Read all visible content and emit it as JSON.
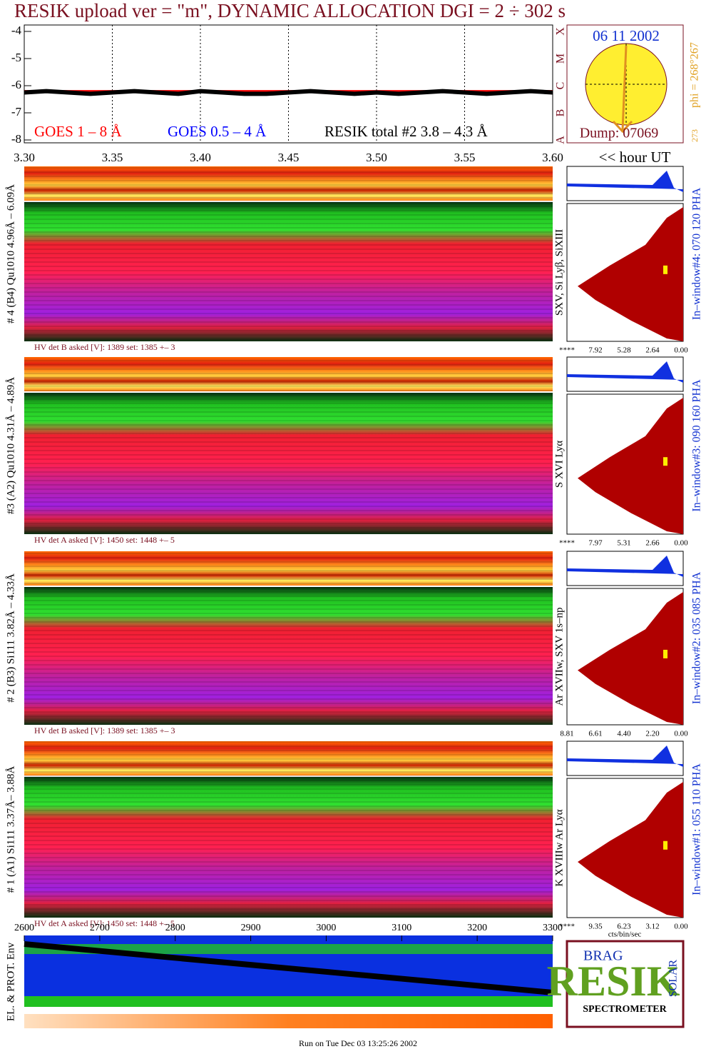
{
  "chart_data": [
    {
      "type": "line",
      "title": "RESIK upload ver = \"m\", DYNAMIC ALLOCATION  DGI =   2 ÷ 302 s",
      "x_label": "<< hour UT",
      "x": [
        3.3,
        3.3125,
        3.325,
        3.3375,
        3.35,
        3.3625,
        3.375,
        3.3875,
        3.4,
        3.4125,
        3.425,
        3.4375,
        3.45,
        3.4625,
        3.475,
        3.4875,
        3.5,
        3.5125,
        3.525,
        3.5375,
        3.55,
        3.5625,
        3.575,
        3.5875,
        3.6
      ],
      "series": [
        {
          "name": "GOES 1 – 8 Å",
          "color": "#ff0000",
          "values": [
            -6.2,
            -6.2,
            -6.2,
            -6.2,
            -6.2,
            -6.2,
            -6.2,
            -6.2,
            -6.2,
            -6.2,
            -6.2,
            -6.2,
            -6.2,
            -6.2,
            -6.2,
            -6.2,
            -6.2,
            -6.2,
            -6.2,
            -6.2,
            -6.2,
            -6.2,
            -6.2,
            -6.2,
            -6.2
          ]
        },
        {
          "name": "GOES 0.5 – 4 Å",
          "color": "#0000ff",
          "values": [
            null,
            null,
            null,
            null,
            null,
            null,
            null,
            null,
            null,
            null,
            null,
            null,
            null,
            null,
            null,
            null,
            null,
            null,
            null,
            null,
            null,
            null,
            null,
            null,
            null
          ]
        },
        {
          "name": "RESIK total #2  3.8 – 4.3 Å",
          "color": "#000000",
          "values": [
            -6.25,
            -6.2,
            -6.25,
            -6.3,
            -6.25,
            -6.2,
            -6.25,
            -6.3,
            -6.2,
            -6.25,
            -6.3,
            -6.3,
            -6.25,
            -6.2,
            -6.25,
            -6.3,
            -6.25,
            -6.3,
            -6.25,
            -6.2,
            -6.25,
            -6.3,
            -6.25,
            -6.2,
            -6.25
          ]
        }
      ],
      "xlim": [
        3.3,
        3.6
      ],
      "xticks": [
        {
          "value": 3.3,
          "label": "3.30"
        },
        3.35,
        {
          "value": 3.4,
          "label": "3.40"
        },
        3.45,
        {
          "value": 3.5,
          "label": "3.50"
        },
        3.55,
        {
          "value": 3.6,
          "label": "3.60"
        }
      ],
      "ylim": [
        -8,
        -4
      ],
      "yticks": [
        -8,
        -7,
        -6,
        -5,
        -4
      ],
      "grid": true
    }
  ],
  "sun": {
    "date": "06 11 2002",
    "dump": "Dump: 07069",
    "phi": "phi = 268°267",
    "phi_min": "273",
    "classes": [
      "X",
      "M",
      "C",
      "B",
      "A"
    ]
  },
  "panels": [
    {
      "label": "# 4 (B4) Qu1010 4.96Å – 6.09Å",
      "hv": "HV det B asked [V]:  1389 set:  1385 +–   3",
      "lines": "SXV, Si Lyβ, SiXIII",
      "window": "In–window#4:  070 120 PHA",
      "hist_ticks": [
        "****",
        "7.92",
        "5.28",
        "2.64",
        "0.00"
      ]
    },
    {
      "label": "#3 (A2) Qu1010  4.31Å – 4.89Å",
      "hv": "HV det A asked [V]:  1450 set:  1448 +–   5",
      "lines": "S XVI Lyα",
      "window": "In–window#3:  090 160 PHA",
      "hist_ticks": [
        "****",
        "7.97",
        "5.31",
        "2.66",
        "0.00"
      ]
    },
    {
      "label": "# 2 (B3) Si111  3.82Å – 4.33Å",
      "hv": "HV det B asked [V]:  1389 set:  1385 +–   3",
      "lines": "Ar XVIIw, SXV 1s–np",
      "window": "In–window#2:  035 085 PHA",
      "hist_ticks": [
        "8.81",
        "6.61",
        "4.40",
        "2.20",
        "0.00"
      ]
    },
    {
      "label": "# 1 (A1) Si111  3.37Å– 3.88Å",
      "hv": "HV det A asked [V]:  1450 set:  1448 +–   5",
      "lines": "K XVIIIw  Ar Lyα",
      "window": "In–window#1:  055 110 PHA",
      "hist_ticks": [
        "****",
        "9.35",
        "6.23",
        "3.12",
        "0.00"
      ]
    }
  ],
  "hist_unit": "cts/bin/sec",
  "env": {
    "label": "EL. & PROT. Env",
    "xlim": [
      2600,
      3300
    ],
    "xticks": [
      2600,
      2700,
      2800,
      2900,
      3000,
      3100,
      3200,
      3300
    ]
  },
  "logo": {
    "name": "RESIK",
    "top": "BRAG",
    "side": "SOLAR",
    "bottom": "SPECTROMETER"
  },
  "footer": "Run on Tue Dec 03 13:25:26 2002"
}
